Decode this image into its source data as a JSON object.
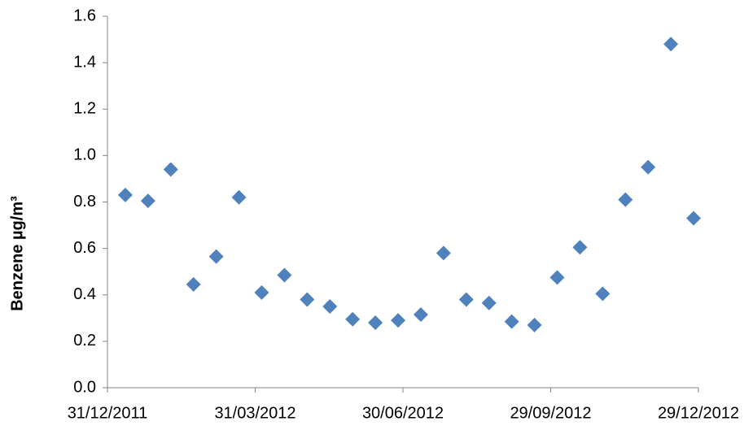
{
  "chart_data": {
    "type": "scatter",
    "y_label": "Benzene µg/m³",
    "x": [
      "11/01/2012",
      "25/01/2012",
      "08/02/2012",
      "22/02/2012",
      "07/03/2012",
      "21/03/2012",
      "04/04/2012",
      "18/04/2012",
      "02/05/2012",
      "16/05/2012",
      "30/05/2012",
      "13/06/2012",
      "27/06/2012",
      "11/07/2012",
      "25/07/2012",
      "08/08/2012",
      "22/08/2012",
      "05/09/2012",
      "19/09/2012",
      "03/10/2012",
      "17/10/2012",
      "31/10/2012",
      "14/11/2012",
      "28/11/2012",
      "12/12/2012",
      "26/12/2012"
    ],
    "values": [
      0.83,
      0.805,
      0.94,
      0.445,
      0.565,
      0.82,
      0.41,
      0.485,
      0.38,
      0.35,
      0.295,
      0.28,
      0.29,
      0.315,
      0.58,
      0.38,
      0.365,
      0.285,
      0.27,
      0.475,
      0.605,
      0.405,
      0.81,
      0.95,
      1.48,
      0.73
    ],
    "color": "#4f81bd",
    "xlim": [
      "31/12/2011",
      "29/12/2012"
    ],
    "xticks": [
      "31/12/2011",
      "31/03/2012",
      "30/06/2012",
      "29/09/2012",
      "29/12/2012"
    ],
    "ylim": [
      0,
      1.6
    ],
    "yticks": [
      {
        "value": 0,
        "label": "0.0"
      },
      0.2,
      0.4,
      0.6,
      0.8,
      {
        "value": 1,
        "label": "1.0"
      },
      1.2,
      1.4,
      1.6
    ],
    "grid": false
  }
}
